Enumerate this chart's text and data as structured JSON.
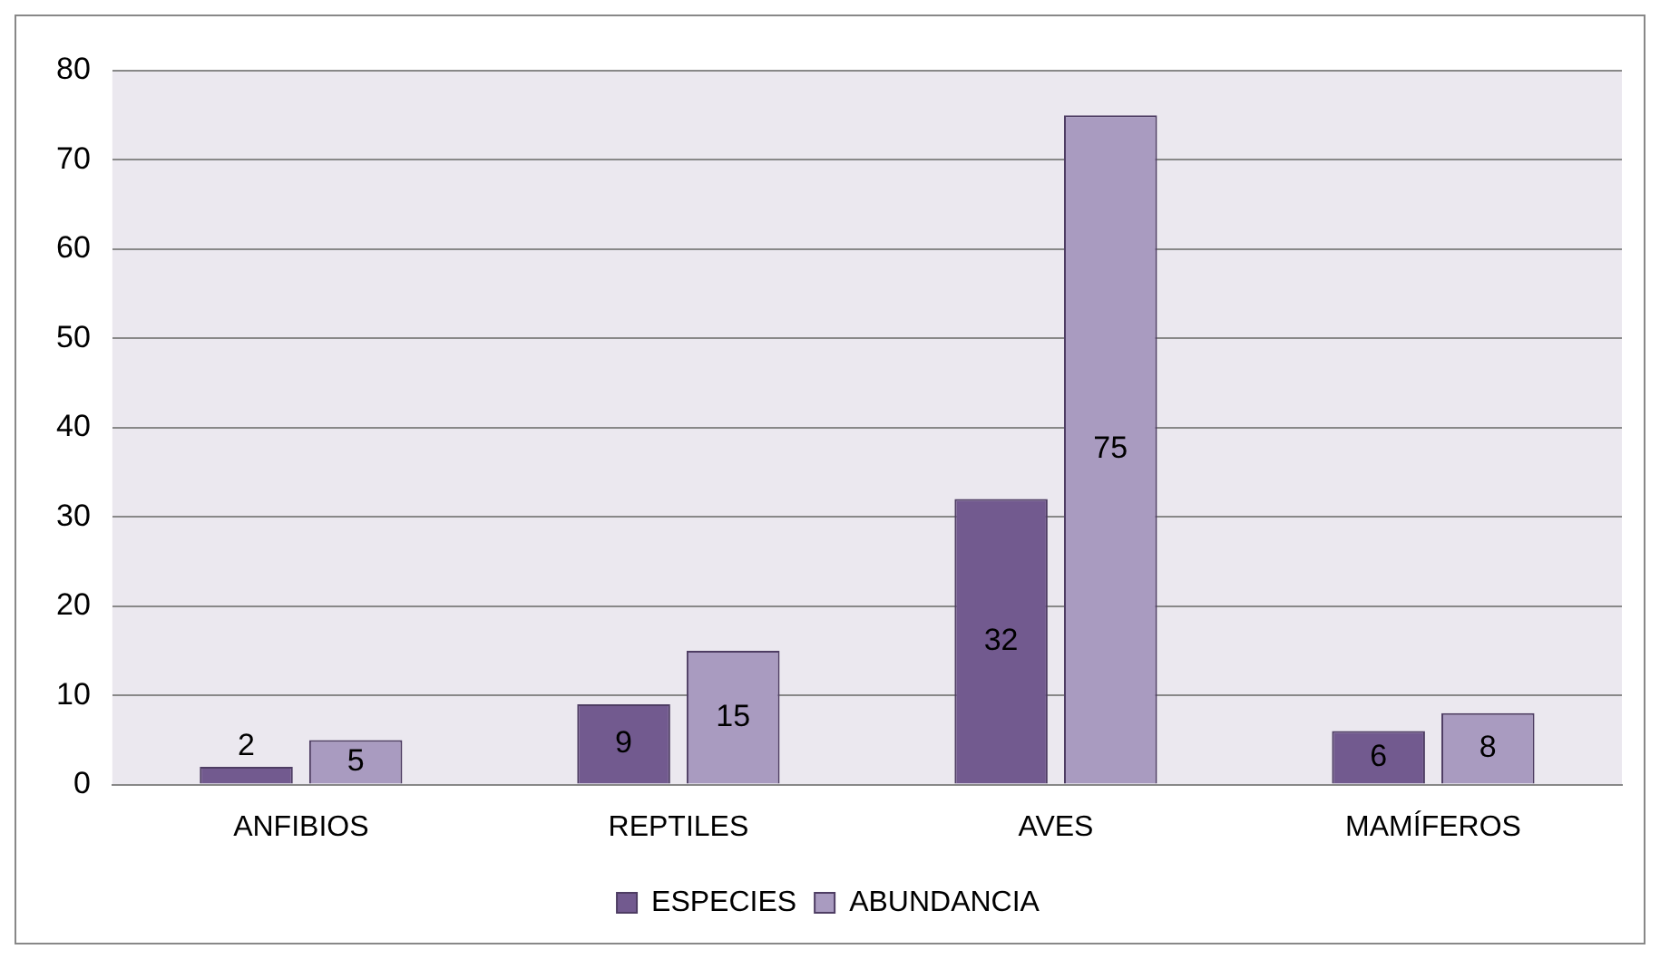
{
  "chart_data": {
    "type": "bar",
    "categories": [
      "ANFIBIOS",
      "REPTILES",
      "AVES",
      "MAMÍFEROS"
    ],
    "series": [
      {
        "name": "ESPECIES",
        "color": "#725a8f",
        "values": [
          2,
          9,
          32,
          6
        ]
      },
      {
        "name": "ABUNDANCIA",
        "color": "#a99bc0",
        "values": [
          5,
          15,
          75,
          8
        ]
      }
    ],
    "ylim": [
      0,
      80
    ],
    "yticks": [
      0,
      10,
      20,
      30,
      40,
      50,
      60,
      70,
      80
    ],
    "grid": "y",
    "legend": "bottom",
    "data_labels": true
  }
}
